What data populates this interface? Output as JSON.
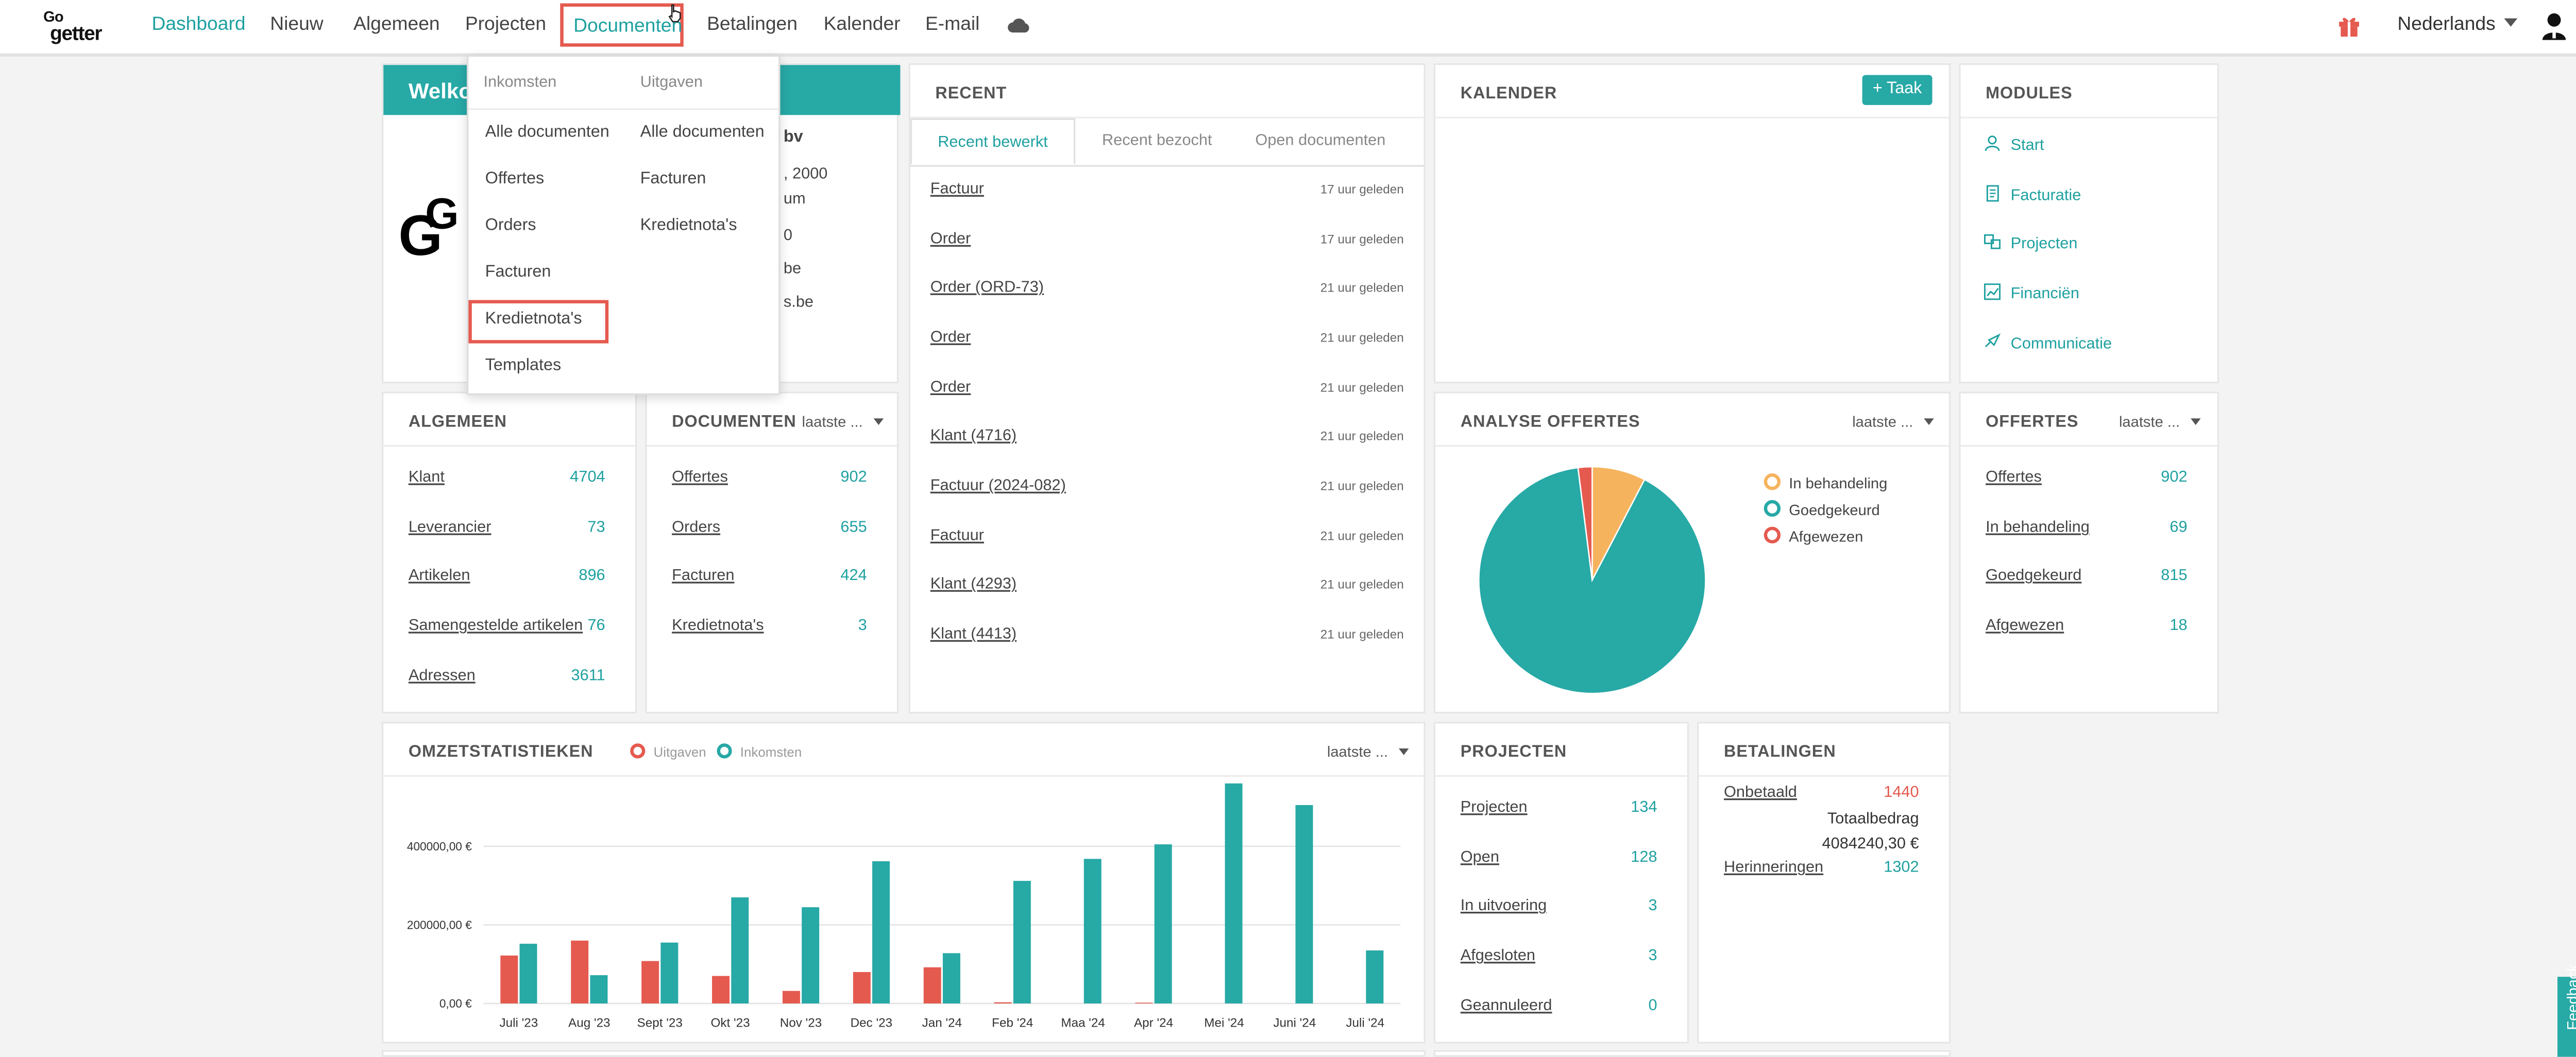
{
  "nav": {
    "logo_top": "Go",
    "logo_bottom": "getter",
    "items": [
      "Dashboard",
      "Nieuw",
      "Algemeen",
      "Projecten",
      "Documenten",
      "Betalingen",
      "Kalender",
      "E-mail"
    ],
    "language": "Nederlands"
  },
  "dropdown": {
    "col1_header": "Inkomsten",
    "col2_header": "Uitgaven",
    "col1_items": [
      "Alle documenten",
      "Offertes",
      "Orders",
      "Facturen",
      "Kredietnota's",
      "Templates"
    ],
    "col2_items": [
      "Alle documenten",
      "Facturen",
      "Kredietnota's"
    ]
  },
  "welcome": {
    "title_visible": "Welko",
    "line1": "bv",
    "line2": ", 2000",
    "line3": "um",
    "line4": "0",
    "line5": "be",
    "line6": "s.be"
  },
  "recent": {
    "title": "RECENT",
    "tabs": [
      "Recent bewerkt",
      "Recent bezocht",
      "Open documenten"
    ],
    "rows": [
      {
        "label": "Factuur",
        "time": "17 uur geleden"
      },
      {
        "label": "Order",
        "time": "17 uur geleden"
      },
      {
        "label": "Order (ORD-73)",
        "time": "21 uur geleden"
      },
      {
        "label": "Order",
        "time": "21 uur geleden"
      },
      {
        "label": "Order",
        "time": "21 uur geleden"
      },
      {
        "label": "Klant (4716)",
        "time": "21 uur geleden"
      },
      {
        "label": "Factuur (2024-082)",
        "time": "21 uur geleden"
      },
      {
        "label": "Factuur",
        "time": "21 uur geleden"
      },
      {
        "label": "Klant (4293)",
        "time": "21 uur geleden"
      },
      {
        "label": "Klant (4413)",
        "time": "21 uur geleden"
      }
    ]
  },
  "calendar": {
    "title": "KALENDER",
    "button": "+ Taak"
  },
  "modules": {
    "title": "MODULES",
    "items": [
      "Start",
      "Facturatie",
      "Projecten",
      "Financiën",
      "Communicatie"
    ]
  },
  "algemeen": {
    "title": "ALGEMEEN",
    "rows": [
      {
        "label": "Klant",
        "value": "4704"
      },
      {
        "label": "Leverancier",
        "value": "73"
      },
      {
        "label": "Artikelen",
        "value": "896"
      },
      {
        "label": "Samengestelde artikelen",
        "value": "76"
      },
      {
        "label": "Adressen",
        "value": "3611"
      }
    ]
  },
  "documenten": {
    "title": "DOCUMENTEN",
    "filter": "laatste ...",
    "rows": [
      {
        "label": "Offertes",
        "value": "902"
      },
      {
        "label": "Orders",
        "value": "655"
      },
      {
        "label": "Facturen",
        "value": "424"
      },
      {
        "label": "Kredietnota's",
        "value": "3"
      }
    ]
  },
  "analyse": {
    "title": "ANALYSE OFFERTES",
    "filter": "laatste ...",
    "legend": [
      "In behandeling",
      "Goedgekeurd",
      "Afgewezen"
    ]
  },
  "offertes": {
    "title": "OFFERTES",
    "filter": "laatste ...",
    "rows": [
      {
        "label": "Offertes",
        "value": "902"
      },
      {
        "label": "In behandeling",
        "value": "69"
      },
      {
        "label": "Goedgekeurd",
        "value": "815"
      },
      {
        "label": "Afgewezen",
        "value": "18"
      }
    ]
  },
  "omzet": {
    "title": "OMZETSTATISTIEKEN",
    "legend_out": "Uitgaven",
    "legend_in": "Inkomsten",
    "filter": "laatste ..."
  },
  "projecten": {
    "title": "PROJECTEN",
    "rows": [
      {
        "label": "Projecten",
        "value": "134"
      },
      {
        "label": "Open",
        "value": "128"
      },
      {
        "label": "In uitvoering",
        "value": "3"
      },
      {
        "label": "Afgesloten",
        "value": "3"
      },
      {
        "label": "Geannuleerd",
        "value": "0"
      }
    ]
  },
  "betalingen": {
    "title": "BETALINGEN",
    "unpaid_label": "Onbetaald",
    "unpaid_value": "1440",
    "total_label": "Totaalbedrag",
    "total_value": "4084240,30 €",
    "reminders_label": "Herinneringen",
    "reminders_value": "1302"
  },
  "feedback": "Feedback",
  "colors": {
    "accent": "#27a9a6",
    "red": "#e55a4f",
    "orange": "#f6b35e"
  },
  "chart_data": [
    {
      "type": "bar",
      "categories": [
        "Juli '23",
        "Aug '23",
        "Sept '23",
        "Okt '23",
        "Nov '23",
        "Dec '23",
        "Jan '24",
        "Feb '24",
        "Maa '24",
        "Apr '24",
        "Mei '24",
        "Juni '24",
        "Juli '24"
      ],
      "series": [
        {
          "name": "Uitgaven",
          "color": "#e55a4f",
          "values": [
            122000,
            160000,
            108000,
            70000,
            32000,
            80000,
            92000,
            3000,
            0,
            2000,
            0,
            0,
            0
          ]
        },
        {
          "name": "Inkomsten",
          "color": "#27a9a6",
          "values": [
            152000,
            72000,
            155000,
            270000,
            245000,
            362000,
            128000,
            312000,
            368000,
            405000,
            560000,
            505000,
            135000
          ]
        }
      ],
      "yticks": [
        "0,00 €",
        "200000,00 €",
        "400000,00 €"
      ],
      "ylim": [
        0,
        560000
      ],
      "grid": true
    },
    {
      "type": "pie",
      "labels": [
        "In behandeling",
        "Goedgekeurd",
        "Afgewezen"
      ],
      "values": [
        69,
        815,
        18
      ],
      "colors": [
        "#f6b35e",
        "#27a9a6",
        "#e55a4f"
      ]
    }
  ]
}
